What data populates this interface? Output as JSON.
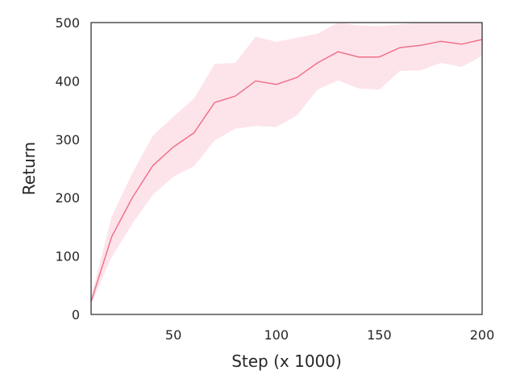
{
  "chart_data": {
    "type": "line",
    "title": "",
    "xlabel": "Step (x 1000)",
    "ylabel": "Return",
    "xlim": [
      10,
      200
    ],
    "ylim": [
      0,
      500
    ],
    "xticks": [
      50,
      100,
      150,
      200
    ],
    "yticks": [
      0,
      100,
      200,
      300,
      400,
      500
    ],
    "grid": false,
    "legend": "none",
    "series": [
      {
        "color": "#f0718b",
        "band_color": "#fde4ea",
        "x": [
          10,
          20,
          30,
          40,
          50,
          60,
          70,
          80,
          90,
          100,
          110,
          120,
          130,
          140,
          150,
          160,
          170,
          180,
          190,
          200
        ],
        "y": [
          22,
          133,
          200,
          255,
          287,
          311,
          363,
          374,
          400,
          394,
          406,
          431,
          450,
          441,
          441,
          457,
          461,
          468,
          463,
          471
        ],
        "lower": [
          18,
          98,
          155,
          205,
          236,
          254,
          298,
          318,
          323,
          321,
          341,
          385,
          401,
          387,
          385,
          417,
          418,
          431,
          424,
          443
        ],
        "upper": [
          30,
          168,
          242,
          306,
          339,
          370,
          429,
          431,
          476,
          467,
          474,
          481,
          500,
          495,
          494,
          497,
          500,
          500,
          500,
          500
        ]
      }
    ]
  }
}
